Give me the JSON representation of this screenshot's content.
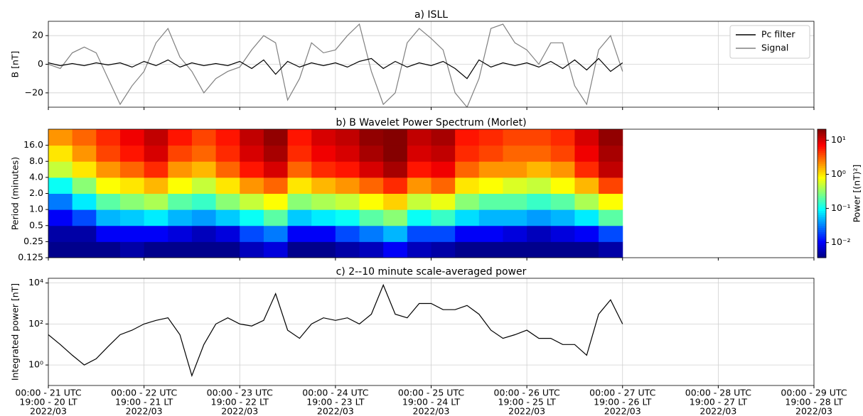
{
  "chart_data": [
    {
      "type": "line",
      "title": "a) ISLL",
      "ylabel": "B [nT]",
      "x": [
        21,
        21.125,
        21.25,
        21.375,
        21.5,
        21.625,
        21.75,
        21.875,
        22,
        22.125,
        22.25,
        22.375,
        22.5,
        22.625,
        22.75,
        22.875,
        23,
        23.125,
        23.25,
        23.375,
        23.5,
        23.625,
        23.75,
        23.875,
        24,
        24.125,
        24.25,
        24.375,
        24.5,
        24.625,
        24.75,
        24.875,
        25,
        25.125,
        25.25,
        25.375,
        25.5,
        25.625,
        25.75,
        25.875,
        26,
        26.125,
        26.25,
        26.375,
        26.5,
        26.625,
        26.75,
        26.875,
        27
      ],
      "series": [
        {
          "name": "Pc filter",
          "color": "#000000",
          "values": [
            1,
            -1,
            0.5,
            -1,
            1,
            -0.5,
            1,
            -2,
            2,
            -1,
            3,
            -2,
            1,
            -1,
            0.5,
            -1,
            2,
            -3,
            3,
            -7,
            2,
            -2,
            1,
            -1,
            1,
            -2,
            2,
            4,
            -3,
            2,
            -2,
            1,
            -1,
            2,
            -3,
            -10,
            3,
            -2,
            1,
            -1,
            1,
            -2,
            2,
            -3,
            3,
            -4,
            4,
            -5,
            1
          ]
        },
        {
          "name": "Signal",
          "color": "#808080",
          "values": [
            0,
            -3,
            8,
            12,
            8,
            -10,
            -28,
            -15,
            -5,
            15,
            25,
            5,
            -5,
            -20,
            -10,
            -5,
            -2,
            10,
            20,
            15,
            -25,
            -10,
            15,
            8,
            10,
            20,
            28,
            -5,
            -28,
            -20,
            15,
            25,
            18,
            10,
            -20,
            -30,
            -10,
            25,
            28,
            15,
            10,
            0,
            15,
            15,
            -15,
            -28,
            10,
            20,
            -5
          ]
        }
      ],
      "xlim": [
        21,
        29
      ],
      "xticks": [
        21,
        22,
        23,
        24,
        25,
        26,
        27,
        28,
        29
      ],
      "ylim": [
        -30,
        30
      ],
      "yticks": [
        {
          "value": -20,
          "label": "−20"
        },
        0,
        20
      ],
      "grid": true,
      "legend": "upper right"
    },
    {
      "type": "heatmap",
      "title": "b) B Wavelet Power Spectrum (Morlet)",
      "ylabel": "Period (minutes)",
      "x_edges": [
        21,
        21.25,
        21.5,
        21.75,
        22,
        22.25,
        22.5,
        22.75,
        23,
        23.25,
        23.5,
        23.75,
        24,
        24.25,
        24.5,
        24.75,
        25,
        25.25,
        25.5,
        25.75,
        26,
        26.25,
        26.5,
        26.75,
        27
      ],
      "y_edges": [
        0.125,
        0.25,
        0.5,
        1,
        2,
        4,
        8,
        16,
        32
      ],
      "z": [
        [
          0.004,
          0.004,
          0.004,
          0.005,
          0.004,
          0.004,
          0.004,
          0.004,
          0.006,
          0.008,
          0.004,
          0.004,
          0.005,
          0.006,
          0.01,
          0.006,
          0.005,
          0.004,
          0.004,
          0.004,
          0.004,
          0.004,
          0.004,
          0.005
        ],
        [
          0.005,
          0.005,
          0.01,
          0.01,
          0.01,
          0.008,
          0.006,
          0.008,
          0.02,
          0.03,
          0.01,
          0.01,
          0.02,
          0.03,
          0.05,
          0.02,
          0.02,
          0.01,
          0.01,
          0.008,
          0.006,
          0.008,
          0.01,
          0.02
        ],
        [
          0.01,
          0.02,
          0.05,
          0.06,
          0.08,
          0.05,
          0.04,
          0.06,
          0.1,
          0.2,
          0.06,
          0.08,
          0.1,
          0.2,
          0.3,
          0.1,
          0.15,
          0.07,
          0.05,
          0.05,
          0.04,
          0.05,
          0.08,
          0.2
        ],
        [
          0.03,
          0.08,
          0.2,
          0.3,
          0.4,
          0.2,
          0.15,
          0.3,
          0.5,
          0.8,
          0.3,
          0.4,
          0.5,
          0.8,
          1.2,
          0.5,
          0.7,
          0.3,
          0.2,
          0.2,
          0.15,
          0.2,
          0.4,
          0.8
        ],
        [
          0.1,
          0.3,
          0.8,
          1,
          1.5,
          0.8,
          0.5,
          1,
          2,
          3,
          1,
          1.5,
          2,
          3,
          5,
          2,
          3,
          1,
          0.8,
          0.6,
          0.5,
          0.8,
          1.5,
          4
        ],
        [
          0.5,
          1,
          2,
          3,
          5,
          2,
          1.5,
          3,
          6,
          10,
          3,
          5,
          6,
          10,
          15,
          6,
          8,
          3,
          2,
          2,
          1.5,
          2,
          5,
          12
        ],
        [
          1,
          2,
          4,
          6,
          10,
          4,
          3,
          5,
          10,
          15,
          5,
          8,
          10,
          15,
          20,
          10,
          12,
          5,
          4,
          3,
          3,
          4,
          8,
          15
        ],
        [
          2,
          3,
          5,
          8,
          12,
          6,
          4,
          6,
          12,
          18,
          6,
          10,
          12,
          18,
          20,
          12,
          15,
          6,
          5,
          4,
          4,
          5,
          10,
          18
        ]
      ],
      "xlim": [
        21,
        29
      ],
      "xticks": [
        21,
        22,
        23,
        24,
        25,
        26,
        27,
        28,
        29
      ],
      "ylim": [
        0.125,
        32
      ],
      "ylog": true,
      "yticks": [
        0.125,
        0.25,
        0.5,
        {
          "value": 1,
          "label": "1.0"
        },
        {
          "value": 2,
          "label": "2.0"
        },
        {
          "value": 4,
          "label": "4.0"
        },
        {
          "value": 8,
          "label": "8.0"
        },
        {
          "value": 16,
          "label": "16.0"
        }
      ],
      "grid": false,
      "colorbar": {
        "label": "Power [(nT)²]",
        "colormap": "jet",
        "log": true,
        "clim": [
          0.0036,
          21
        ],
        "ticks": [
          {
            "value": 0.01,
            "label": "10⁻²"
          },
          {
            "value": 0.1,
            "label": "10⁻¹"
          },
          {
            "value": 1,
            "label": "10⁰"
          },
          {
            "value": 10,
            "label": "10¹"
          }
        ]
      }
    },
    {
      "type": "line",
      "title": "c) 2--10 minute scale-averaged power",
      "ylabel": "Integrated power [nT]",
      "x": [
        21,
        21.125,
        21.25,
        21.375,
        21.5,
        21.625,
        21.75,
        21.875,
        22,
        22.125,
        22.25,
        22.375,
        22.5,
        22.625,
        22.75,
        22.875,
        23,
        23.125,
        23.25,
        23.375,
        23.5,
        23.625,
        23.75,
        23.875,
        24,
        24.125,
        24.25,
        24.375,
        24.5,
        24.625,
        24.75,
        24.875,
        25,
        25.125,
        25.25,
        25.375,
        25.5,
        25.625,
        25.75,
        25.875,
        26,
        26.125,
        26.25,
        26.375,
        26.5,
        26.625,
        26.75,
        26.875,
        27
      ],
      "series": [
        {
          "color": "#000000",
          "values": [
            30,
            10,
            3,
            1,
            2,
            8,
            30,
            50,
            100,
            150,
            200,
            30,
            0.3,
            10,
            100,
            200,
            100,
            80,
            150,
            3000,
            50,
            20,
            100,
            200,
            150,
            200,
            100,
            300,
            8000,
            300,
            200,
            1000,
            1000,
            500,
            500,
            800,
            300,
            50,
            20,
            30,
            50,
            20,
            20,
            10,
            10,
            3,
            300,
            1500,
            100
          ]
        }
      ],
      "xlim": [
        21,
        29
      ],
      "xticks": [
        {
          "value": 21,
          "label": [
            "00:00 - 21 UTC",
            "19:00 - 20 LT",
            "2022/03"
          ]
        },
        {
          "value": 22,
          "label": [
            "00:00 - 22 UTC",
            "19:00 - 21 LT",
            "2022/03"
          ]
        },
        {
          "value": 23,
          "label": [
            "00:00 - 23 UTC",
            "19:00 - 22 LT",
            "2022/03"
          ]
        },
        {
          "value": 24,
          "label": [
            "00:00 - 24 UTC",
            "19:00 - 23 LT",
            "2022/03"
          ]
        },
        {
          "value": 25,
          "label": [
            "00:00 - 25 UTC",
            "19:00 - 24 LT",
            "2022/03"
          ]
        },
        {
          "value": 26,
          "label": [
            "00:00 - 26 UTC",
            "19:00 - 25 LT",
            "2022/03"
          ]
        },
        {
          "value": 27,
          "label": [
            "00:00 - 27 UTC",
            "19:00 - 26 LT",
            "2022/03"
          ]
        },
        {
          "value": 28,
          "label": [
            "00:00 - 28 UTC",
            "19:00 - 27 LT",
            "2022/03"
          ]
        },
        {
          "value": 29,
          "label": [
            "00:00 - 29 UTC",
            "19:00 - 28 LT",
            "2022/03"
          ]
        }
      ],
      "ylim": [
        0.1,
        17000
      ],
      "ylog": true,
      "yticks": [
        {
          "value": 1,
          "label": "10⁰"
        },
        {
          "value": 100,
          "label": "10²"
        },
        {
          "value": 10000,
          "label": "10⁴"
        }
      ],
      "grid": true
    }
  ]
}
